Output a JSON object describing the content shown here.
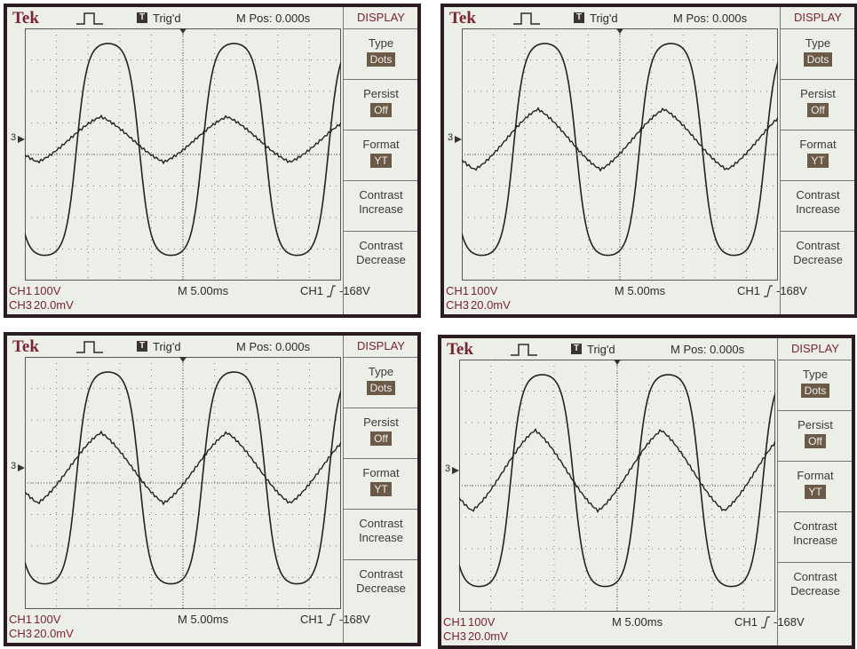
{
  "panels": [
    {
      "header": {
        "brand": "Tek",
        "trig_icon": "T",
        "trig": "Trig'd",
        "mpos": "M Pos: 0.000s"
      },
      "menu": {
        "title": "DISPLAY",
        "items": [
          {
            "label": "Type",
            "value": "Dots"
          },
          {
            "label": "Persist",
            "value": "Off"
          },
          {
            "label": "Format",
            "value": "YT"
          },
          {
            "label": "Contrast Increase"
          },
          {
            "label": "Contrast Decrease"
          }
        ]
      },
      "marker": "3",
      "footer": {
        "ch1": "CH1",
        "ch1_scale": "100V",
        "ch3": "CH3",
        "ch3_scale": "20.0mV",
        "timebase": "M 5.00ms",
        "trig_src": "CH1",
        "trig_level": "-168V"
      }
    },
    {
      "header": {
        "brand": "Tek",
        "trig_icon": "T",
        "trig": "Trig'd",
        "mpos": "M Pos: 0.000s"
      },
      "menu": {
        "title": "DISPLAY",
        "items": [
          {
            "label": "Type",
            "value": "Dots"
          },
          {
            "label": "Persist",
            "value": "Off"
          },
          {
            "label": "Format",
            "value": "YT"
          },
          {
            "label": "Contrast Increase"
          },
          {
            "label": "Contrast Decrease"
          }
        ]
      },
      "marker": "3",
      "footer": {
        "ch1": "CH1",
        "ch1_scale": "100V",
        "ch3": "CH3",
        "ch3_scale": "20.0mV",
        "timebase": "M 5.00ms",
        "trig_src": "CH1",
        "trig_level": "-168V"
      }
    },
    {
      "header": {
        "brand": "Tek",
        "trig_icon": "T",
        "trig": "Trig'd",
        "mpos": "M Pos: 0.000s"
      },
      "menu": {
        "title": "DISPLAY",
        "items": [
          {
            "label": "Type",
            "value": "Dots"
          },
          {
            "label": "Persist",
            "value": "Off"
          },
          {
            "label": "Format",
            "value": "YT"
          },
          {
            "label": "Contrast Increase"
          },
          {
            "label": "Contrast Decrease"
          }
        ]
      },
      "marker": "3",
      "footer": {
        "ch1": "CH1",
        "ch1_scale": "100V",
        "ch3": "CH3",
        "ch3_scale": "20.0mV",
        "timebase": "M 5.00ms",
        "trig_src": "CH1",
        "trig_level": "-168V"
      }
    },
    {
      "header": {
        "brand": "Tek",
        "trig_icon": "T",
        "trig": "Trig'd",
        "mpos": "M Pos: 0.000s"
      },
      "menu": {
        "title": "DISPLAY",
        "items": [
          {
            "label": "Type",
            "value": "Dots"
          },
          {
            "label": "Persist",
            "value": "Off"
          },
          {
            "label": "Format",
            "value": "YT"
          },
          {
            "label": "Contrast Increase"
          },
          {
            "label": "Contrast Decrease"
          }
        ]
      },
      "marker": "3",
      "footer": {
        "ch1": "CH1",
        "ch1_scale": "100V",
        "ch3": "CH3",
        "ch3_scale": "20.0mV",
        "timebase": "M 5.00ms",
        "trig_src": "CH1",
        "trig_level": "-168V"
      }
    }
  ]
}
